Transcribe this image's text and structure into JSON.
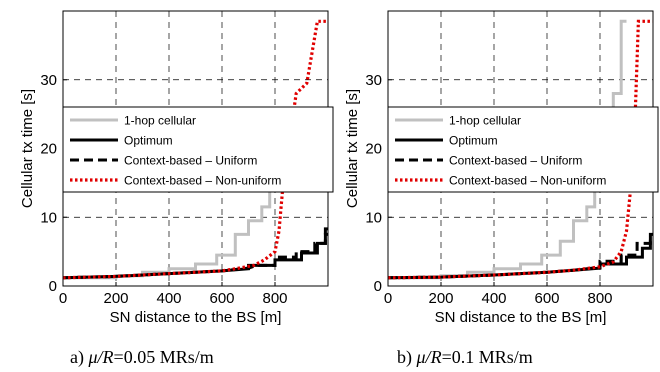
{
  "chart_data": [
    {
      "type": "line",
      "caption_prefix": "a) ",
      "caption_mu": "μ",
      "caption_slash": "/",
      "caption_R": "R",
      "caption_value": "=0.05 MRs/m",
      "xlabel": "SN distance to the BS [m]",
      "ylabel": "Cellular tx time [s]",
      "xlim": [
        0,
        1000
      ],
      "ylim": [
        0,
        40
      ],
      "xticks": [
        0,
        200,
        400,
        600,
        800
      ],
      "yticks": [
        0,
        10,
        20,
        30
      ],
      "grid": true,
      "legend_position": "center-right",
      "series": [
        {
          "name": "1-hop cellular",
          "color": "#c0c0c0",
          "style": "solid",
          "x": [
            0,
            200,
            200,
            300,
            300,
            400,
            400,
            500,
            500,
            580,
            580,
            650,
            650,
            700,
            700,
            750,
            750,
            780,
            780,
            800,
            800,
            820
          ],
          "y": [
            1.2,
            1.2,
            1.5,
            1.5,
            2.0,
            2.0,
            2.5,
            2.5,
            3.2,
            3.2,
            4.5,
            4.5,
            7.5,
            7.5,
            9.5,
            9.5,
            11.5,
            11.5,
            16.0,
            16.0,
            20.0,
            20.0
          ]
        },
        {
          "name": "Optimum",
          "color": "#000000",
          "style": "solid",
          "x": [
            0,
            200,
            400,
            600,
            700,
            700,
            800,
            800,
            900,
            900,
            960,
            960,
            990,
            990,
            1000
          ],
          "y": [
            1.2,
            1.4,
            1.8,
            2.2,
            2.5,
            3.0,
            3.0,
            3.8,
            3.8,
            4.8,
            4.8,
            6.2,
            6.2,
            7.5,
            7.5
          ]
        },
        {
          "name": "Context-based – Uniform",
          "color": "#000000",
          "style": "dashed",
          "x": [
            0,
            200,
            400,
            600,
            700,
            730,
            730,
            800,
            800,
            880,
            880,
            950,
            950,
            990,
            990,
            1000
          ],
          "y": [
            1.2,
            1.4,
            1.8,
            2.2,
            2.6,
            3.0,
            3.0,
            3.0,
            4.2,
            4.2,
            5.0,
            5.0,
            6.2,
            6.2,
            8.3,
            8.3
          ]
        },
        {
          "name": "Context-based – Non-uniform",
          "color": "#e00000",
          "style": "dotted",
          "x": [
            0,
            200,
            400,
            600,
            650,
            650,
            720,
            720,
            760,
            760,
            800,
            800,
            815,
            815,
            830,
            830,
            880,
            880,
            920,
            920,
            960,
            960,
            1000
          ],
          "y": [
            1.2,
            1.4,
            1.8,
            2.2,
            2.5,
            2.5,
            3.0,
            3.0,
            3.8,
            3.8,
            5.0,
            5.0,
            8.0,
            8.0,
            14.5,
            14.5,
            28.0,
            28.0,
            29.5,
            29.5,
            38.5,
            38.5,
            38.5
          ]
        }
      ]
    },
    {
      "type": "line",
      "caption_prefix": "b) ",
      "caption_mu": "μ",
      "caption_slash": "/",
      "caption_R": "R",
      "caption_value": "=0.1 MRs/m",
      "xlabel": "SN distance to the BS [m]",
      "ylabel": "Cellular tx time [s]",
      "xlim": [
        0,
        1000
      ],
      "ylim": [
        0,
        40
      ],
      "xticks": [
        0,
        200,
        400,
        600,
        800
      ],
      "yticks": [
        0,
        10,
        20,
        30
      ],
      "grid": true,
      "legend_position": "center-right",
      "series": [
        {
          "name": "1-hop cellular",
          "color": "#c0c0c0",
          "style": "solid",
          "x": [
            0,
            200,
            200,
            300,
            300,
            400,
            400,
            500,
            500,
            580,
            580,
            650,
            650,
            700,
            700,
            750,
            750,
            780,
            780,
            800,
            800,
            850,
            850,
            880,
            880,
            900
          ],
          "y": [
            1.2,
            1.2,
            1.5,
            1.5,
            2.0,
            2.0,
            2.5,
            2.5,
            3.2,
            3.2,
            4.5,
            4.5,
            6.5,
            6.5,
            9.5,
            9.5,
            11.5,
            11.5,
            16.0,
            16.0,
            20.0,
            20.0,
            28.0,
            28.0,
            38.5,
            38.5
          ]
        },
        {
          "name": "Optimum",
          "color": "#000000",
          "style": "solid",
          "x": [
            0,
            200,
            400,
            600,
            700,
            700,
            800,
            800,
            900,
            900,
            960,
            960,
            990,
            990,
            1000
          ],
          "y": [
            1.2,
            1.3,
            1.6,
            2.0,
            2.3,
            2.3,
            2.6,
            3.2,
            3.2,
            4.2,
            4.2,
            5.5,
            5.5,
            7.5,
            7.5
          ]
        },
        {
          "name": "Context-based – Uniform",
          "color": "#000000",
          "style": "dashed",
          "x": [
            0,
            200,
            400,
            600,
            700,
            700,
            800,
            800,
            880,
            880,
            940,
            940,
            990,
            990,
            1000
          ],
          "y": [
            1.2,
            1.3,
            1.6,
            2.0,
            2.3,
            2.3,
            2.7,
            3.6,
            3.6,
            4.5,
            4.5,
            6.2,
            6.2,
            6.5,
            6.5
          ]
        },
        {
          "name": "Context-based – Non-uniform",
          "color": "#e00000",
          "style": "dotted",
          "x": [
            0,
            200,
            400,
            600,
            700,
            800,
            800,
            850,
            850,
            880,
            880,
            900,
            900,
            915,
            915,
            930,
            930,
            945,
            945,
            1000
          ],
          "y": [
            1.2,
            1.3,
            1.6,
            2.0,
            2.3,
            2.8,
            2.8,
            3.5,
            3.5,
            5.0,
            5.0,
            8.0,
            8.0,
            14.0,
            14.0,
            22.0,
            22.0,
            38.5,
            38.5,
            38.5
          ]
        }
      ]
    }
  ]
}
